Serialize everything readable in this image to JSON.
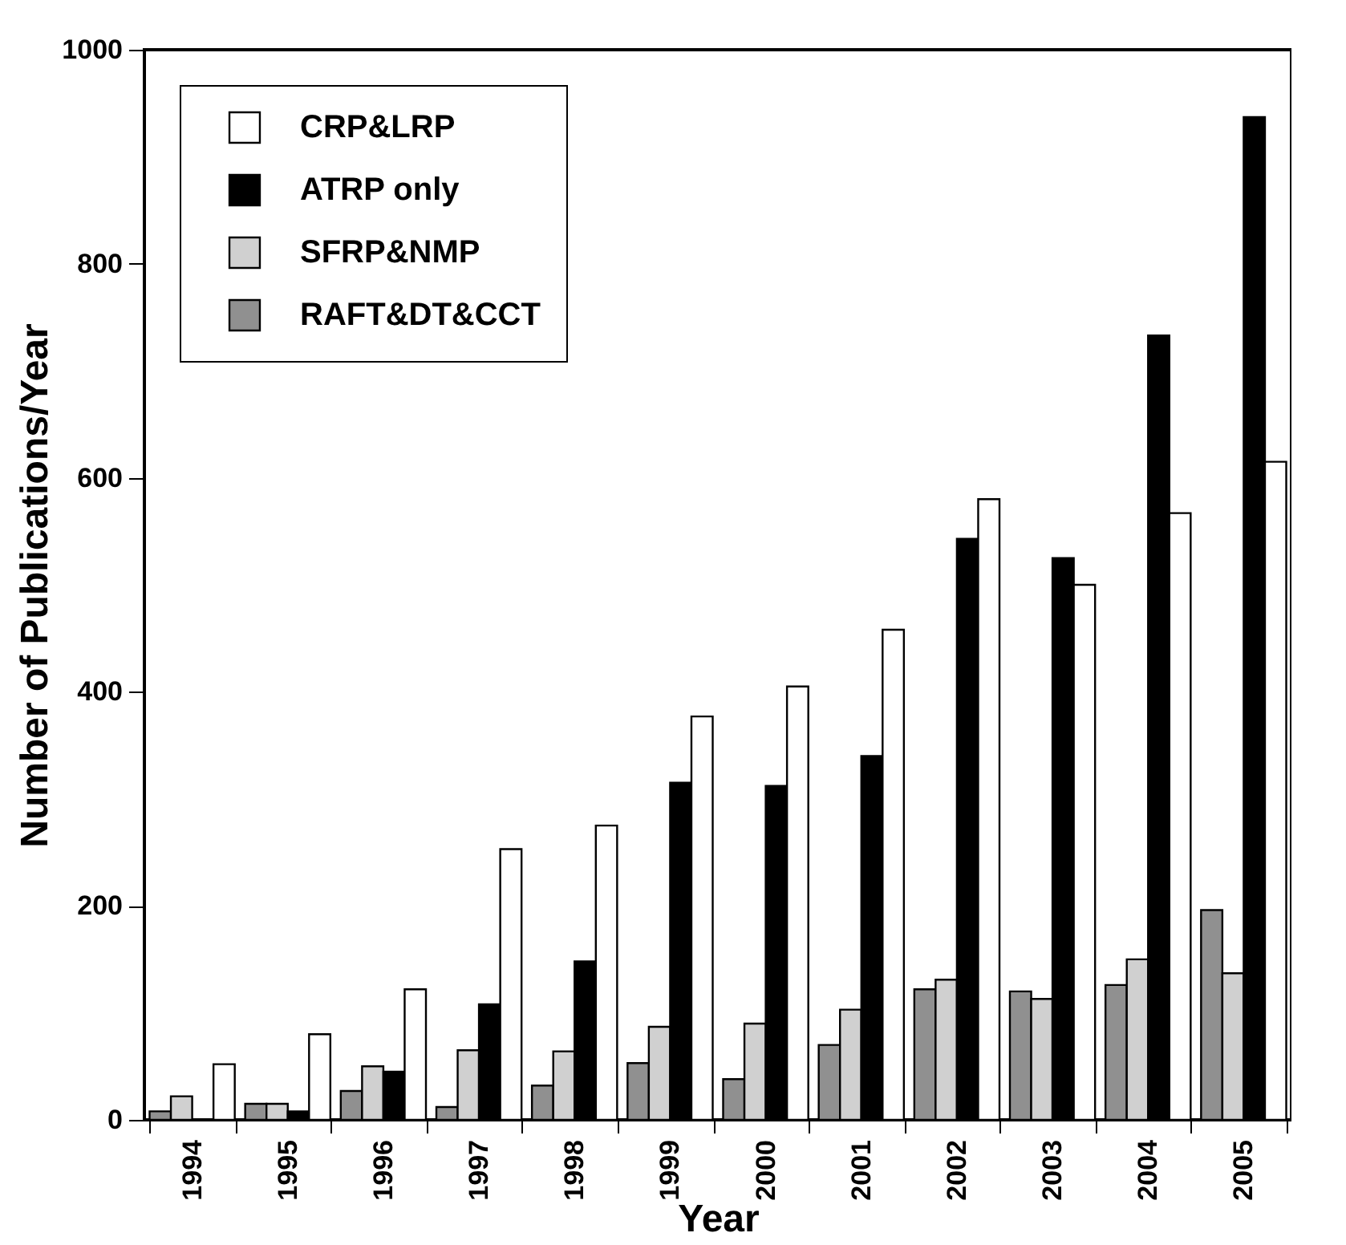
{
  "chart_data": {
    "type": "bar",
    "xlabel": "Year",
    "ylabel": "Number of Publications/Year",
    "categories": [
      "1994",
      "1995",
      "1996",
      "1997",
      "1998",
      "1999",
      "2000",
      "2001",
      "2002",
      "2003",
      "2004",
      "2005"
    ],
    "series": [
      {
        "name": "RAFT&DT&CCT",
        "color": "#909090",
        "values": [
          8,
          15,
          27,
          12,
          32,
          53,
          38,
          70,
          122,
          120,
          126,
          196
        ]
      },
      {
        "name": "SFRP&NMP",
        "color": "#d0d0d0",
        "values": [
          22,
          15,
          50,
          65,
          64,
          87,
          90,
          103,
          131,
          113,
          150,
          137
        ]
      },
      {
        "name": "ATRP only",
        "color": "#000000",
        "values": [
          0,
          8,
          45,
          108,
          148,
          315,
          312,
          340,
          543,
          525,
          733,
          937
        ]
      },
      {
        "name": "CRP&LRP",
        "color": "#ffffff",
        "values": [
          52,
          80,
          122,
          253,
          275,
          377,
          405,
          458,
          580,
          500,
          567,
          615
        ]
      }
    ],
    "ylim": [
      0,
      1000
    ],
    "yticks": [
      0,
      200,
      400,
      600,
      800,
      1000
    ],
    "grid": false,
    "legend": "top left"
  }
}
